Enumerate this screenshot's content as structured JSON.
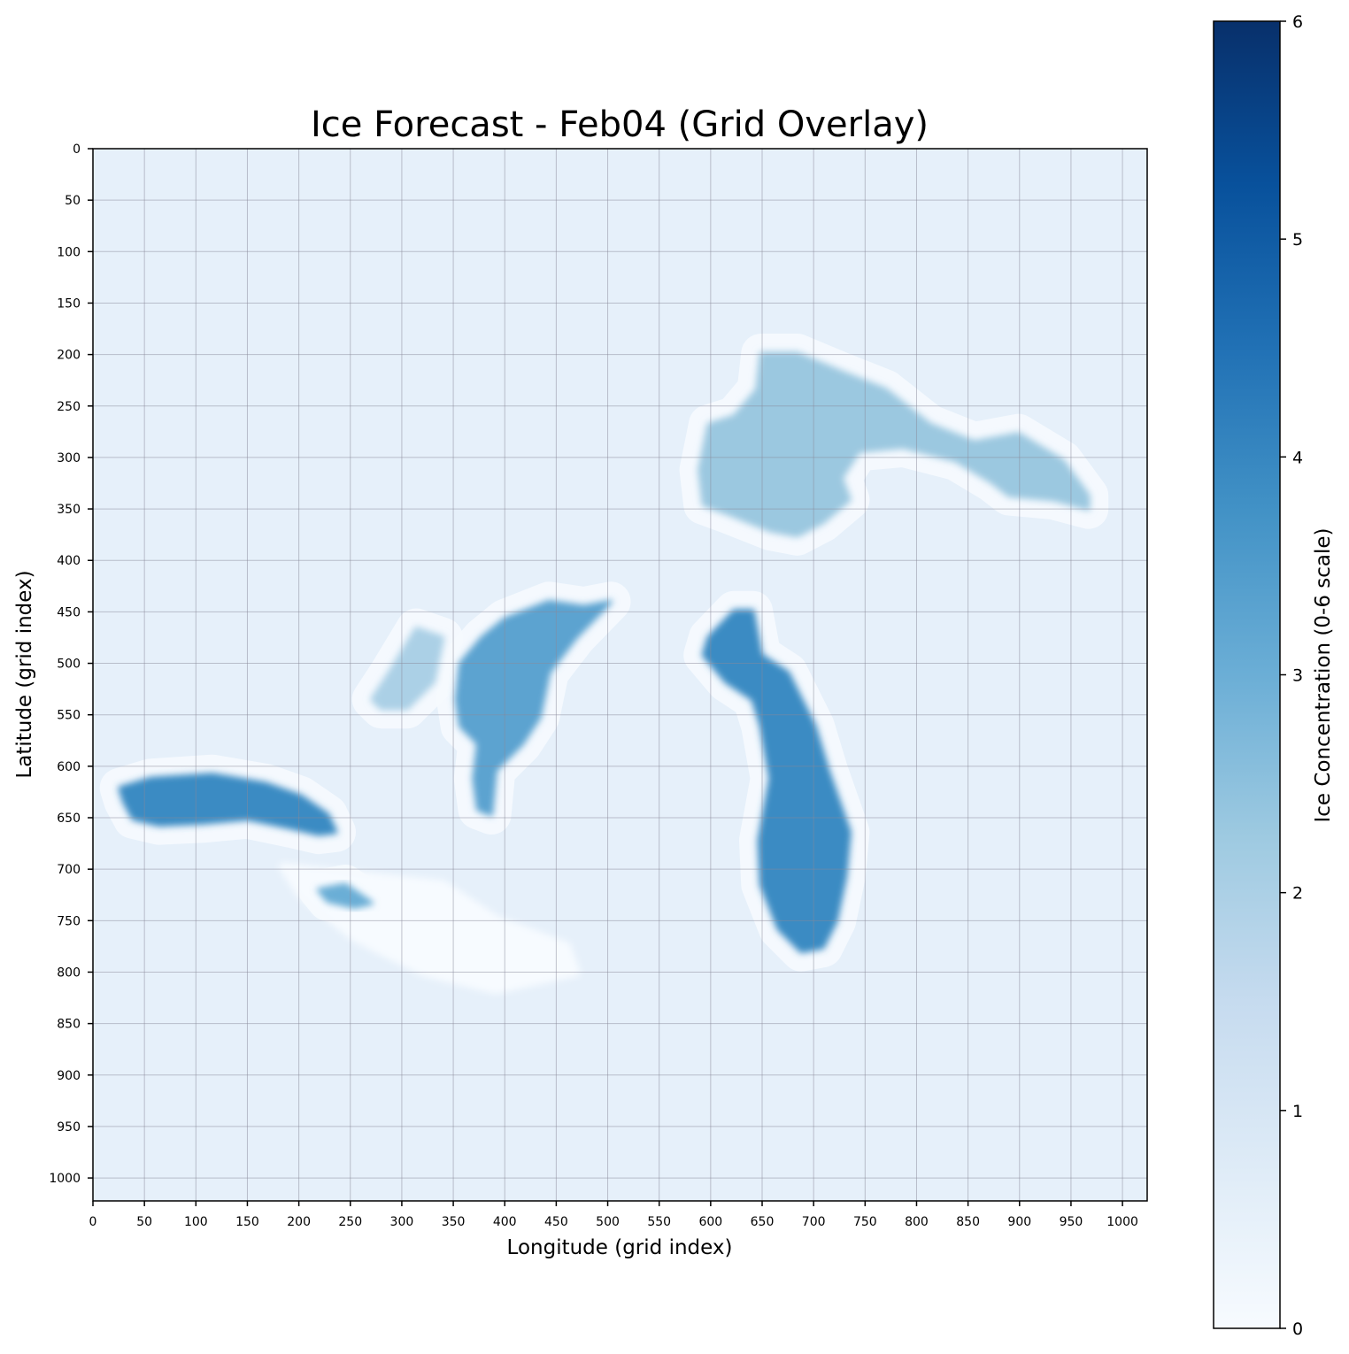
{
  "chart_data": {
    "type": "heatmap",
    "title": "Ice Forecast - Feb04 (Grid Overlay)",
    "xlabel": "Longitude (grid index)",
    "ylabel": "Latitude (grid index)",
    "xlim": [
      0,
      1024
    ],
    "ylim": [
      1024,
      0
    ],
    "xticks": [
      0,
      50,
      100,
      150,
      200,
      250,
      300,
      350,
      400,
      450,
      500,
      550,
      600,
      650,
      700,
      750,
      800,
      850,
      900,
      950,
      1000
    ],
    "yticks": [
      0,
      50,
      100,
      150,
      200,
      250,
      300,
      350,
      400,
      450,
      500,
      550,
      600,
      650,
      700,
      750,
      800,
      850,
      900,
      950,
      1000
    ],
    "grid": true,
    "colormap": "Blues",
    "colormap_stops": [
      "#f7fbff",
      "#deebf7",
      "#c6dbef",
      "#9ecae1",
      "#6baed6",
      "#4292c6",
      "#2171b5",
      "#08519c",
      "#08306b"
    ],
    "background_value": 0.5,
    "colorbar": {
      "label": "Ice Concentration (0-6 scale)",
      "range": [
        0,
        6
      ],
      "ticks": [
        0,
        1,
        2,
        3,
        4,
        5,
        6
      ],
      "placement": "right"
    },
    "regions": [
      {
        "value": 0,
        "halo": true,
        "points": [
          [
            185,
            698
          ],
          [
            254,
            706
          ],
          [
            340,
            715
          ],
          [
            391,
            749
          ],
          [
            460,
            775
          ],
          [
            469,
            800
          ],
          [
            391,
            817
          ],
          [
            322,
            800
          ],
          [
            254,
            766
          ],
          [
            202,
            724
          ]
        ]
      },
      {
        "value": 2.3,
        "points": [
          [
            589,
            312
          ],
          [
            598,
            268
          ],
          [
            623,
            260
          ],
          [
            645,
            234
          ],
          [
            649,
            199
          ],
          [
            684,
            199
          ],
          [
            727,
            217
          ],
          [
            770,
            234
          ],
          [
            813,
            268
          ],
          [
            856,
            285
          ],
          [
            899,
            277
          ],
          [
            942,
            303
          ],
          [
            967,
            337
          ],
          [
            967,
            350
          ],
          [
            933,
            341
          ],
          [
            890,
            337
          ],
          [
            873,
            324
          ],
          [
            838,
            303
          ],
          [
            787,
            290
          ],
          [
            744,
            294
          ],
          [
            727,
            320
          ],
          [
            735,
            341
          ],
          [
            709,
            363
          ],
          [
            684,
            376
          ],
          [
            658,
            371
          ],
          [
            615,
            354
          ],
          [
            593,
            346
          ]
        ]
      },
      {
        "value": 3.9,
        "points": [
          [
            598,
            475
          ],
          [
            623,
            449
          ],
          [
            641,
            449
          ],
          [
            649,
            492
          ],
          [
            675,
            509
          ],
          [
            701,
            561
          ],
          [
            714,
            604
          ],
          [
            735,
            664
          ],
          [
            731,
            707
          ],
          [
            722,
            750
          ],
          [
            709,
            776
          ],
          [
            688,
            780
          ],
          [
            666,
            758
          ],
          [
            649,
            715
          ],
          [
            647,
            672
          ],
          [
            658,
            612
          ],
          [
            649,
            561
          ],
          [
            641,
            535
          ],
          [
            615,
            518
          ],
          [
            593,
            492
          ]
        ]
      },
      {
        "value": 3.3,
        "points": [
          [
            353,
            535
          ],
          [
            357,
            500
          ],
          [
            378,
            475
          ],
          [
            400,
            457
          ],
          [
            443,
            440
          ],
          [
            477,
            445
          ],
          [
            503,
            440
          ],
          [
            469,
            475
          ],
          [
            443,
            509
          ],
          [
            434,
            552
          ],
          [
            417,
            578
          ],
          [
            391,
            604
          ],
          [
            387,
            647
          ],
          [
            374,
            642
          ],
          [
            370,
            612
          ],
          [
            374,
            578
          ],
          [
            357,
            561
          ]
        ]
      },
      {
        "value": 2.0,
        "points": [
          [
            271,
            535
          ],
          [
            288,
            509
          ],
          [
            314,
            466
          ],
          [
            340,
            475
          ],
          [
            331,
            518
          ],
          [
            305,
            544
          ],
          [
            280,
            544
          ]
        ]
      },
      {
        "value": 3.9,
        "points": [
          [
            26,
            621
          ],
          [
            56,
            612
          ],
          [
            116,
            608
          ],
          [
            168,
            617
          ],
          [
            202,
            629
          ],
          [
            228,
            647
          ],
          [
            236,
            664
          ],
          [
            219,
            666
          ],
          [
            193,
            660
          ],
          [
            150,
            651
          ],
          [
            107,
            655
          ],
          [
            64,
            657
          ],
          [
            39,
            651
          ],
          [
            30,
            634
          ]
        ]
      },
      {
        "value": 3.0,
        "points": [
          [
            219,
            720
          ],
          [
            245,
            715
          ],
          [
            271,
            733
          ],
          [
            254,
            737
          ],
          [
            228,
            731
          ]
        ]
      }
    ]
  }
}
